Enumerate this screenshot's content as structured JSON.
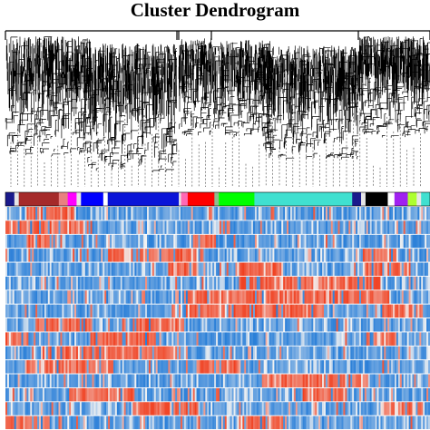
{
  "chart_data": {
    "type": "heatmap",
    "title": "Cluster Dendrogram",
    "dendrogram": {
      "top_level_clusters": 4,
      "dashed_connector_lines": true
    },
    "module_color_bar": [
      {
        "color": "#1a1a8c",
        "share": 0.02
      },
      {
        "color": "#e6e6e6",
        "share": 0.01
      },
      {
        "color": "#a52a2a",
        "share": 0.09
      },
      {
        "color": "#e88080",
        "share": 0.02
      },
      {
        "color": "#ff00ff",
        "share": 0.02
      },
      {
        "color": "#e6e6e6",
        "share": 0.01
      },
      {
        "color": "#0000ff",
        "share": 0.05
      },
      {
        "color": "#ffffff",
        "share": 0.01
      },
      {
        "color": "#0a14d8",
        "share": 0.16
      },
      {
        "color": "#e6e6e6",
        "share": 0.005
      },
      {
        "color": "#ff69b4",
        "share": 0.015
      },
      {
        "color": "#ff0000",
        "share": 0.06
      },
      {
        "color": "#8fbc8f",
        "share": 0.01
      },
      {
        "color": "#00ff00",
        "share": 0.08
      },
      {
        "color": "#40e0d0",
        "share": 0.22
      },
      {
        "color": "#1a1a8c",
        "share": 0.02
      },
      {
        "color": "#e6e6e6",
        "share": 0.01
      },
      {
        "color": "#000000",
        "share": 0.05
      },
      {
        "color": "#ffffff",
        "share": 0.015
      },
      {
        "color": "#a020f0",
        "share": 0.03
      },
      {
        "color": "#adff2f",
        "share": 0.02
      },
      {
        "color": "#e6e6e6",
        "share": 0.01
      },
      {
        "color": "#40e0d0",
        "share": 0.02
      }
    ],
    "heatmap": {
      "rows": 16,
      "columns": 240,
      "value_range": [
        -1,
        1
      ],
      "low_color": "#2a7fd8",
      "mid_color": "#f2f2f2",
      "high_color": "#f04020",
      "row_red_segments": [
        [
          [
            0.05,
            0.16
          ]
        ],
        [
          [
            0.0,
            0.2
          ]
        ],
        [
          [
            0.05,
            0.12
          ],
          [
            0.43,
            0.5
          ]
        ],
        [
          [
            0.24,
            0.45
          ],
          [
            0.84,
            0.92
          ]
        ],
        [
          [
            0.38,
            0.45
          ],
          [
            0.54,
            0.65
          ],
          [
            0.84,
            0.95
          ]
        ],
        [
          [
            0.55,
            0.88
          ]
        ],
        [
          [
            0.42,
            0.9
          ]
        ],
        [
          [
            0.42,
            0.75
          ],
          [
            0.88,
            0.98
          ]
        ],
        [
          [
            0.07,
            0.2
          ],
          [
            0.3,
            0.42
          ]
        ],
        [
          [
            0.0,
            0.05
          ],
          [
            0.2,
            0.35
          ],
          [
            0.85,
            0.92
          ]
        ],
        [
          [
            0.08,
            0.4
          ]
        ],
        [
          [
            0.05,
            0.25
          ],
          [
            0.45,
            0.55
          ]
        ],
        [
          [
            0.6,
            0.85
          ]
        ],
        [
          [
            0.15,
            0.3
          ],
          [
            0.7,
            0.8
          ]
        ],
        [
          [
            0.3,
            0.45
          ],
          [
            0.88,
            0.98
          ]
        ],
        [
          [
            0.0,
            0.1
          ],
          [
            0.55,
            0.65
          ]
        ]
      ]
    }
  }
}
